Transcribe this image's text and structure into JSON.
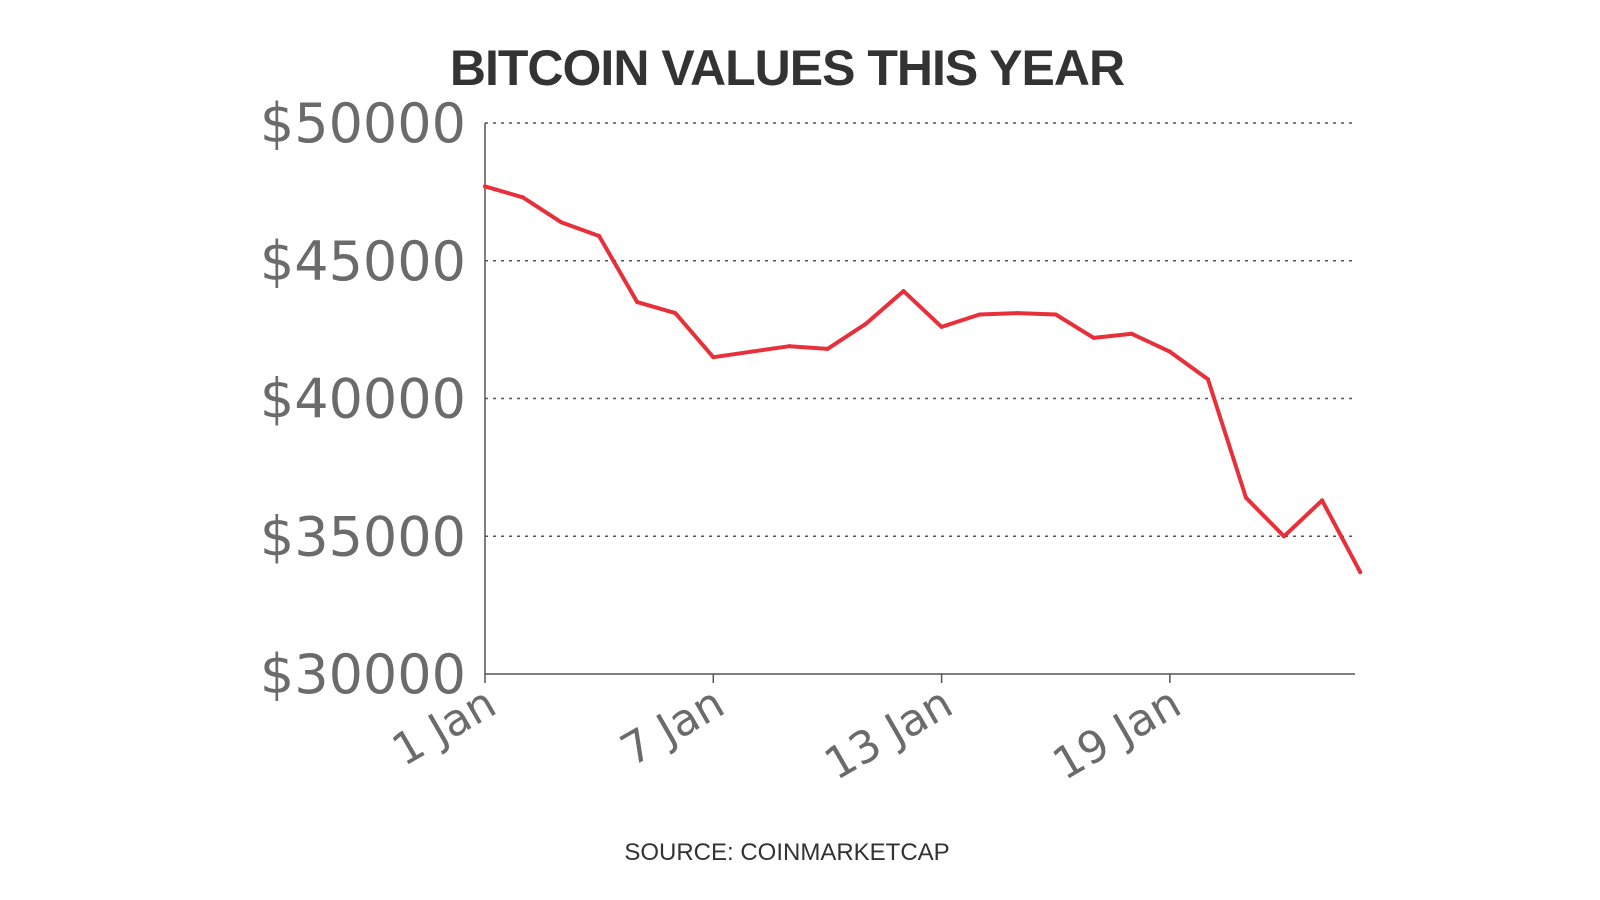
{
  "chart_data": {
    "type": "line",
    "title": "BITCOIN VALUES THIS YEAR",
    "source": "SOURCE: COINMARKETCAP",
    "xlabel": "",
    "ylabel": "",
    "x_ticks": [
      {
        "day": 1,
        "label": "1 Jan"
      },
      {
        "day": 7,
        "label": "7 Jan"
      },
      {
        "day": 13,
        "label": "13 Jan"
      },
      {
        "day": 19,
        "label": "19 Jan"
      }
    ],
    "x_range_days": [
      1,
      24
    ],
    "y_ticks": [
      {
        "value": 50000,
        "label": "$50000"
      },
      {
        "value": 45000,
        "label": "$45000"
      },
      {
        "value": 40000,
        "label": "$40000"
      },
      {
        "value": 35000,
        "label": "$35000"
      },
      {
        "value": 30000,
        "label": "$30000"
      }
    ],
    "ylim": [
      30000,
      50000
    ],
    "grid": true,
    "grid_style": "dotted horizontal",
    "color": "#e8303a",
    "series": [
      {
        "x": [
          "1 Jan",
          "2 Jan",
          "3 Jan",
          "4 Jan",
          "5 Jan",
          "6 Jan",
          "7 Jan",
          "8 Jan",
          "9 Jan",
          "10 Jan",
          "11 Jan",
          "12 Jan",
          "13 Jan",
          "14 Jan",
          "15 Jan",
          "16 Jan",
          "17 Jan",
          "18 Jan",
          "19 Jan",
          "20 Jan",
          "21 Jan",
          "22 Jan",
          "23 Jan",
          "24 Jan"
        ],
        "values": [
          47700,
          47300,
          46400,
          45900,
          43500,
          43100,
          41500,
          41700,
          41900,
          41800,
          42700,
          43900,
          42600,
          43050,
          43100,
          43050,
          42200,
          42350,
          41700,
          40700,
          36400,
          35000,
          36300,
          33700
        ]
      }
    ]
  }
}
